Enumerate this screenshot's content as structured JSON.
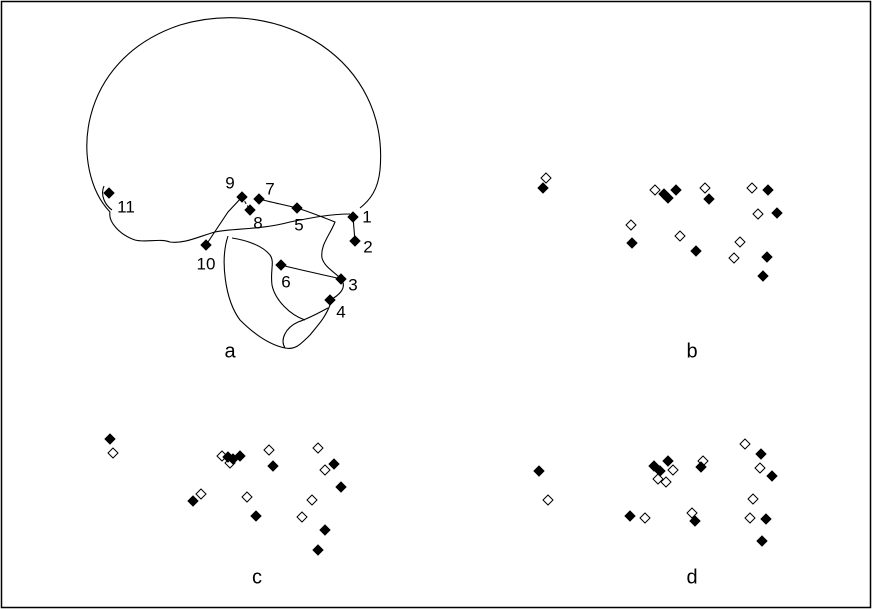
{
  "panels": [
    {
      "label": "a"
    },
    {
      "label": "b"
    },
    {
      "label": "c"
    },
    {
      "label": "d"
    }
  ],
  "landmarks": [
    "1",
    "2",
    "3",
    "4",
    "5",
    "6",
    "7",
    "8",
    "9",
    "10",
    "11"
  ]
}
